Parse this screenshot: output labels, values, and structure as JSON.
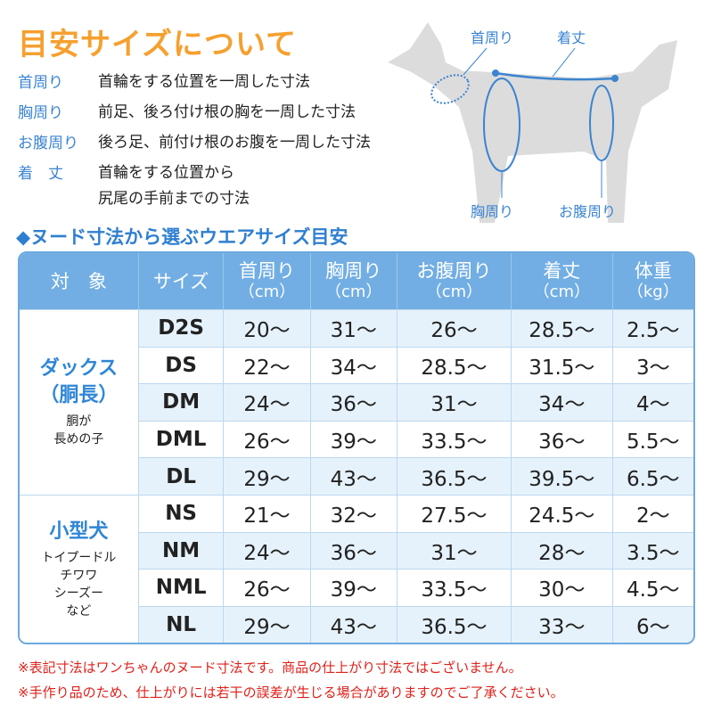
{
  "title": "目安サイズについて",
  "definitions": [
    {
      "term": "首周り",
      "desc": "首輪をする位置を一周した寸法"
    },
    {
      "term": "胸周り",
      "desc": "前足、後ろ付け根の胸を一周した寸法"
    },
    {
      "term": "お腹周り",
      "desc": "後ろ足、前付け根のお腹を一周した寸法"
    },
    {
      "term": "着　丈",
      "desc": "首輪をする位置から\n尻尾の手前までの寸法"
    }
  ],
  "diagram": {
    "neck": "首周り",
    "length": "着丈",
    "chest": "胸周り",
    "belly": "お腹周り"
  },
  "subtitle": "◆ヌード寸法から選ぶウエアサイズ目安",
  "table": {
    "headers": [
      {
        "l": "対　象",
        "u": ""
      },
      {
        "l": "サイズ",
        "u": ""
      },
      {
        "l": "首周り",
        "u": "（cm）"
      },
      {
        "l": "胸周り",
        "u": "（cm）"
      },
      {
        "l": "お腹周り",
        "u": "（cm）"
      },
      {
        "l": "着丈",
        "u": "（cm）"
      },
      {
        "l": "体重",
        "u": "（kg）"
      }
    ],
    "groups": [
      {
        "name": "ダックス\n（胴長）",
        "note": "胴が\n長めの子",
        "rows": [
          [
            "D2S",
            "20～",
            "31～",
            "26～",
            "28.5～",
            "2.5～"
          ],
          [
            "DS",
            "22～",
            "34～",
            "28.5～",
            "31.5～",
            "3～"
          ],
          [
            "DM",
            "24～",
            "36～",
            "31～",
            "34～",
            "4～"
          ],
          [
            "DML",
            "26～",
            "39～",
            "33.5～",
            "36～",
            "5.5～"
          ],
          [
            "DL",
            "29～",
            "43～",
            "36.5～",
            "39.5～",
            "6.5～"
          ]
        ]
      },
      {
        "name": "小型犬",
        "note": "トイプードル\nチワワ\nシーズー\nなど",
        "rows": [
          [
            "NS",
            "21～",
            "32～",
            "27.5～",
            "24.5～",
            "2～"
          ],
          [
            "NM",
            "24～",
            "36～",
            "31～",
            "28～",
            "3.5～"
          ],
          [
            "NML",
            "26～",
            "39～",
            "33.5～",
            "30～",
            "4.5～"
          ],
          [
            "NL",
            "29～",
            "43～",
            "36.5～",
            "33～",
            "6～"
          ]
        ]
      }
    ]
  },
  "notes": [
    "※表記寸法はワンちゃんのヌード寸法です。商品の仕上がり寸法ではございません。",
    "※手作り品のため、仕上がりには若干の誤差が生じる場合がありますのでご了承ください。"
  ]
}
